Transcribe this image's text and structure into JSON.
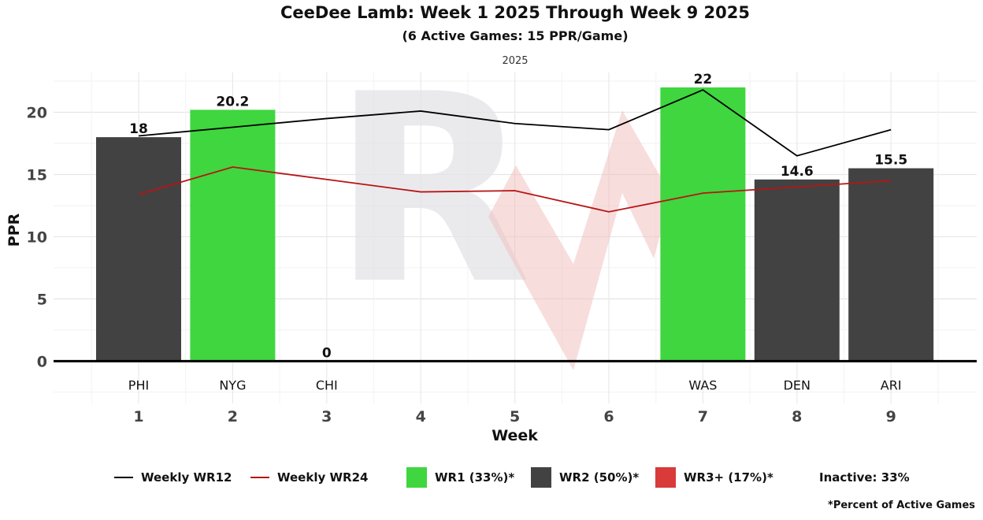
{
  "title": "CeeDee Lamb: Week 1 2025 Through Week 9 2025",
  "subtitle": "(6 Active Games: 15 PPR/Game)",
  "panel_label": "2025",
  "watermark_text": "R",
  "colors": {
    "wr1": "#3fd63f",
    "wr2": "#424242",
    "wr3": "#d93a3a",
    "wr12_line": "#000000",
    "wr24_line": "#b81414"
  },
  "legend": {
    "wr12": "Weekly WR12",
    "wr24": "Weekly WR24",
    "wr1": "WR1 (33%)*",
    "wr2": "WR2 (50%)*",
    "wr3": "WR3+ (17%)*",
    "inactive": "Inactive: 33%"
  },
  "footnote": "*Percent of Active Games",
  "chart_data": {
    "type": "bar",
    "title": "CeeDee Lamb: Week 1 2025 Through Week 9 2025",
    "xlabel": "Week",
    "ylabel": "PPR",
    "ylim": [
      -3.4,
      23.2
    ],
    "yticks": [
      0,
      5,
      10,
      15,
      20
    ],
    "weeks": [
      1,
      2,
      3,
      4,
      5,
      6,
      7,
      8,
      9
    ],
    "bars": [
      {
        "week": 1,
        "value": 18,
        "label": "18",
        "opponent": "PHI",
        "tier": "wr2"
      },
      {
        "week": 2,
        "value": 20.2,
        "label": "20.2",
        "opponent": "NYG",
        "tier": "wr1"
      },
      {
        "week": 3,
        "value": 0,
        "label": "0",
        "opponent": "CHI",
        "tier": "wr3"
      },
      {
        "week": 7,
        "value": 22,
        "label": "22",
        "opponent": "WAS",
        "tier": "wr1"
      },
      {
        "week": 8,
        "value": 14.6,
        "label": "14.6",
        "opponent": "DEN",
        "tier": "wr2"
      },
      {
        "week": 9,
        "value": 15.5,
        "label": "15.5",
        "opponent": "ARI",
        "tier": "wr2"
      }
    ],
    "series": [
      {
        "name": "Weekly WR12",
        "x": [
          1,
          2,
          3,
          4,
          5,
          6,
          7,
          8,
          9
        ],
        "values": [
          18.1,
          18.8,
          19.5,
          20.1,
          19.1,
          18.6,
          21.8,
          16.5,
          18.6
        ]
      },
      {
        "name": "Weekly WR24",
        "x": [
          1,
          2,
          3,
          4,
          5,
          6,
          7,
          8,
          9
        ],
        "values": [
          13.4,
          15.6,
          14.6,
          13.6,
          13.7,
          12.0,
          13.5,
          14.0,
          14.5
        ]
      }
    ]
  }
}
